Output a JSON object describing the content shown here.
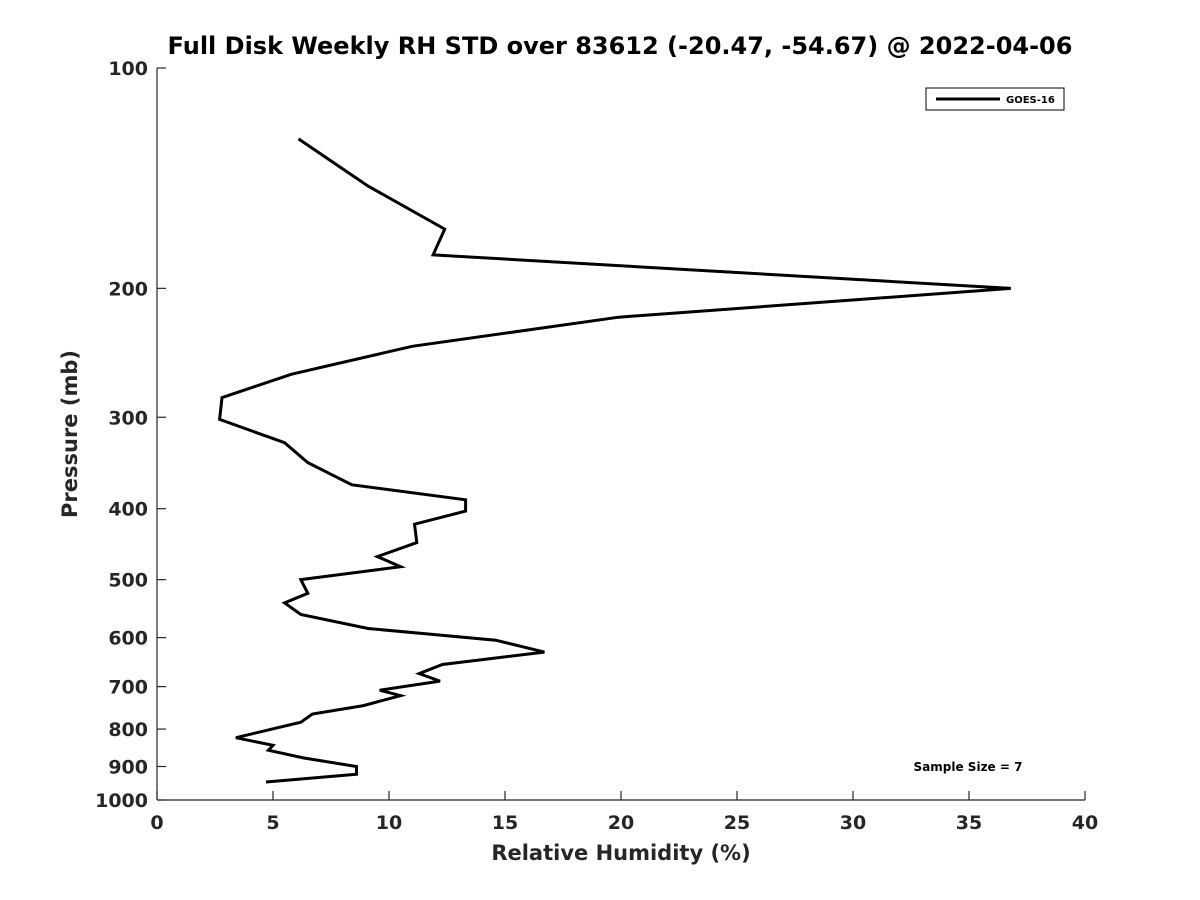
{
  "chart_data": {
    "type": "line",
    "title": "Full Disk Weekly RH STD over 83612 (-20.47, -54.67) @ 2022-04-06",
    "xlabel": "Relative Humidity (%)",
    "ylabel": "Pressure (mb)",
    "xlim": [
      0,
      40
    ],
    "ylim": [
      100,
      1000
    ],
    "yscale": "log",
    "reverse_y": true,
    "x_ticks": [
      0,
      5,
      10,
      15,
      20,
      25,
      30,
      35,
      40
    ],
    "y_ticks": [
      100,
      200,
      300,
      400,
      500,
      600,
      700,
      800,
      900,
      1000
    ],
    "legend": {
      "location": "top-right",
      "entries": [
        "GOES-16"
      ]
    },
    "annotation": "Sample Size = 7",
    "series": [
      {
        "name": "GOES-16",
        "color": "#000000",
        "points": [
          [
            6.1,
            125
          ],
          [
            9.1,
            145
          ],
          [
            12.4,
            166
          ],
          [
            11.9,
            180
          ],
          [
            36.8,
            200
          ],
          [
            19.9,
            219
          ],
          [
            11.0,
            240
          ],
          [
            5.8,
            262
          ],
          [
            2.8,
            282
          ],
          [
            2.7,
            302
          ],
          [
            5.5,
            325
          ],
          [
            6.5,
            346
          ],
          [
            8.4,
            371
          ],
          [
            13.3,
            389
          ],
          [
            13.3,
            403
          ],
          [
            11.1,
            420
          ],
          [
            11.2,
            445
          ],
          [
            9.5,
            465
          ],
          [
            10.5,
            480
          ],
          [
            6.2,
            500
          ],
          [
            6.5,
            522
          ],
          [
            5.5,
            538
          ],
          [
            6.2,
            558
          ],
          [
            9.1,
            583
          ],
          [
            14.6,
            605
          ],
          [
            16.7,
            628
          ],
          [
            12.3,
            653
          ],
          [
            11.3,
            672
          ],
          [
            12.2,
            688
          ],
          [
            9.6,
            708
          ],
          [
            10.5,
            720
          ],
          [
            8.9,
            743
          ],
          [
            6.7,
            763
          ],
          [
            6.2,
            783
          ],
          [
            4.8,
            802
          ],
          [
            3.4,
            822
          ],
          [
            5.0,
            842
          ],
          [
            4.8,
            855
          ],
          [
            6.3,
            876
          ],
          [
            8.6,
            900
          ],
          [
            8.6,
            922
          ],
          [
            4.7,
            945
          ]
        ]
      }
    ]
  }
}
